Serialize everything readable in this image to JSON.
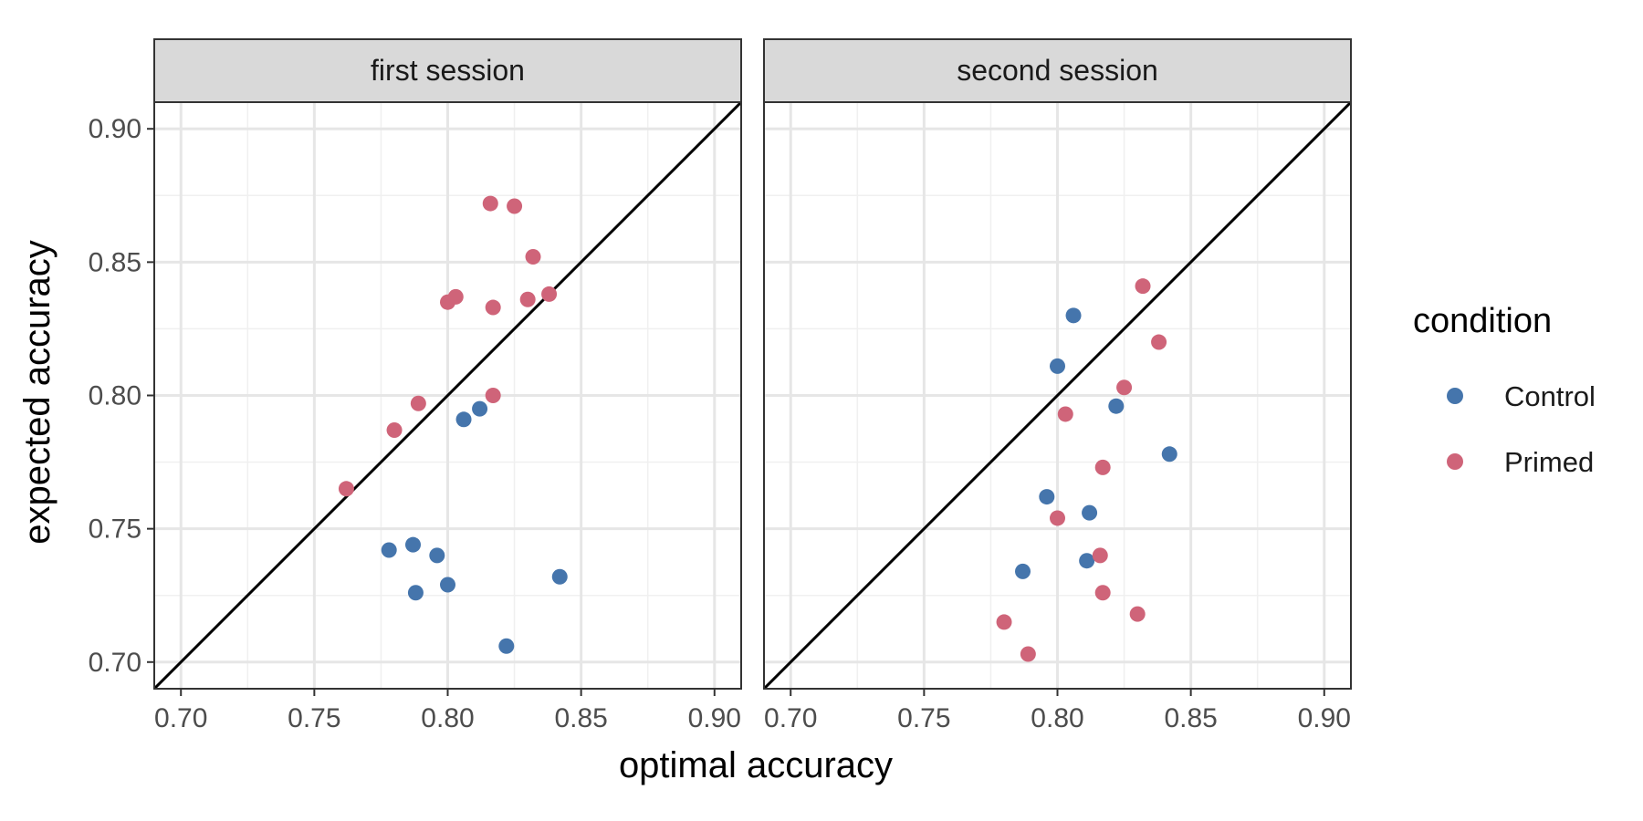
{
  "chart_data": {
    "type": "scatter",
    "xlabel": "optimal accuracy",
    "ylabel": "expected accuracy",
    "xlim": [
      0.69,
      0.91
    ],
    "ylim": [
      0.69,
      0.91
    ],
    "x_ticks": [
      "0.70",
      "0.75",
      "0.80",
      "0.85",
      "0.90"
    ],
    "y_ticks": [
      "0.70",
      "0.75",
      "0.80",
      "0.85",
      "0.90"
    ],
    "grid": true,
    "reference_line": "identity",
    "legend": {
      "title": "condition",
      "placement": "right",
      "entries": [
        {
          "name": "Control",
          "color": "#4575ac"
        },
        {
          "name": "Primed",
          "color": "#cf6479"
        }
      ]
    },
    "panels": [
      {
        "title": "first session",
        "series": [
          {
            "name": "Control",
            "points": [
              [
                0.778,
                0.742
              ],
              [
                0.787,
                0.744
              ],
              [
                0.788,
                0.726
              ],
              [
                0.796,
                0.74
              ],
              [
                0.8,
                0.729
              ],
              [
                0.806,
                0.791
              ],
              [
                0.812,
                0.795
              ],
              [
                0.822,
                0.706
              ],
              [
                0.842,
                0.732
              ]
            ]
          },
          {
            "name": "Primed",
            "points": [
              [
                0.762,
                0.765
              ],
              [
                0.78,
                0.787
              ],
              [
                0.789,
                0.797
              ],
              [
                0.8,
                0.835
              ],
              [
                0.803,
                0.837
              ],
              [
                0.816,
                0.872
              ],
              [
                0.817,
                0.833
              ],
              [
                0.817,
                0.8
              ],
              [
                0.825,
                0.871
              ],
              [
                0.83,
                0.836
              ],
              [
                0.832,
                0.852
              ],
              [
                0.838,
                0.838
              ]
            ]
          }
        ]
      },
      {
        "title": "second session",
        "series": [
          {
            "name": "Control",
            "points": [
              [
                0.787,
                0.734
              ],
              [
                0.796,
                0.762
              ],
              [
                0.8,
                0.811
              ],
              [
                0.806,
                0.83
              ],
              [
                0.811,
                0.738
              ],
              [
                0.812,
                0.756
              ],
              [
                0.822,
                0.796
              ],
              [
                0.842,
                0.778
              ]
            ]
          },
          {
            "name": "Primed",
            "points": [
              [
                0.78,
                0.715
              ],
              [
                0.789,
                0.703
              ],
              [
                0.8,
                0.754
              ],
              [
                0.803,
                0.793
              ],
              [
                0.816,
                0.74
              ],
              [
                0.817,
                0.726
              ],
              [
                0.817,
                0.773
              ],
              [
                0.825,
                0.803
              ],
              [
                0.83,
                0.718
              ],
              [
                0.832,
                0.841
              ],
              [
                0.838,
                0.82
              ]
            ]
          }
        ]
      }
    ]
  }
}
